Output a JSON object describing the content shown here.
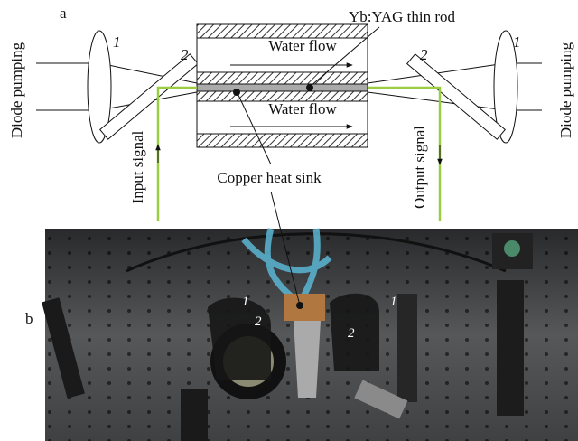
{
  "panel_a": {
    "label": "a",
    "diode_pumping_left": "Diode pumping",
    "diode_pumping_right": "Diode pumping",
    "lens_left": "1",
    "mirror_left": "2",
    "lens_right": "1",
    "mirror_right": "2",
    "rod": "Yb:YAG thin rod",
    "water_flow_top": "Water flow",
    "water_flow_bottom": "Water flow",
    "input_signal": "Input signal",
    "output_signal": "Output signal",
    "heat_sink": "Copper heat sink"
  },
  "panel_b": {
    "label": "b",
    "lens_left": "1",
    "mirror_left": "2",
    "lens_right": "1",
    "mirror_right": "2"
  }
}
